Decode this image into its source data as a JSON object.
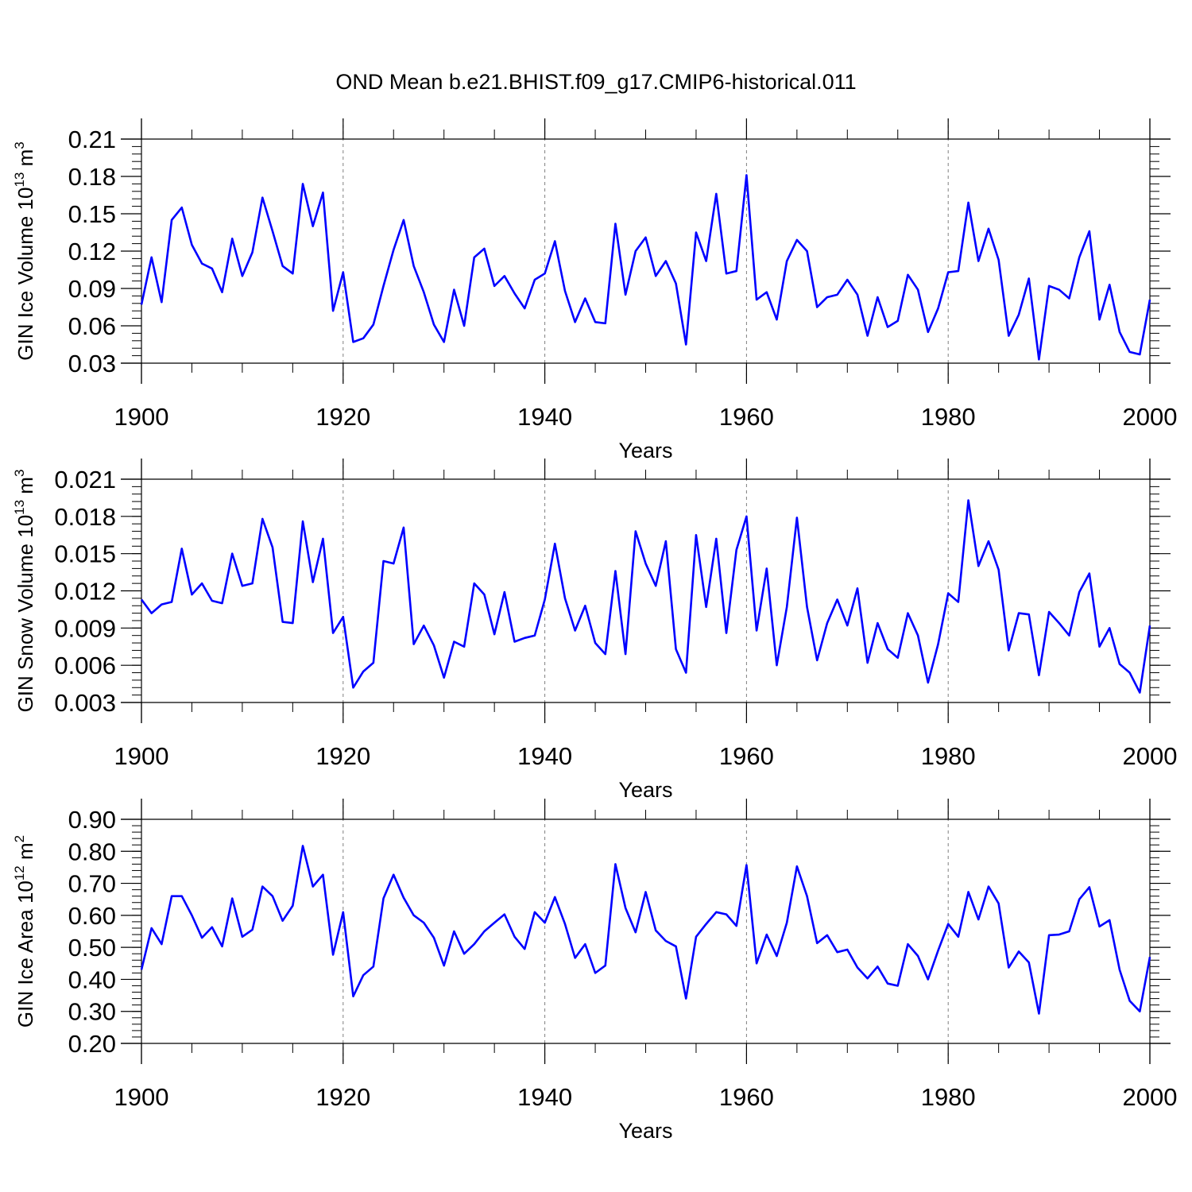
{
  "title": "OND Mean b.e21.BHIST.f09_g17.CMIP6-historical.011",
  "colors": {
    "series": "#0000ff",
    "axis": "#000000",
    "grid": "#808080",
    "background": "#ffffff"
  },
  "chart_data": [
    {
      "type": "line",
      "ylabel_base": "GIN Ice Volume 10",
      "ylabel_exp": "13",
      "ylabel_unit": " m",
      "ylabel_unit_exp": "3",
      "xlabel": "Years",
      "ylim": [
        0.03,
        0.21
      ],
      "xlim": [
        1900,
        2000
      ],
      "yticks": [
        0.03,
        0.06,
        0.09,
        0.12,
        0.15,
        0.18,
        0.21
      ],
      "ytick_labels": [
        "0.03",
        "0.06",
        "0.09",
        "0.12",
        "0.15",
        "0.18",
        "0.21"
      ],
      "xticks": [
        1900,
        1920,
        1940,
        1960,
        1980,
        2000
      ],
      "xtick_labels": [
        "1900",
        "1920",
        "1940",
        "1960",
        "1980",
        "2000"
      ],
      "x_start": 1900,
      "values": [
        0.077,
        0.115,
        0.079,
        0.145,
        0.155,
        0.125,
        0.11,
        0.106,
        0.087,
        0.13,
        0.1,
        0.119,
        0.163,
        0.136,
        0.108,
        0.102,
        0.174,
        0.14,
        0.167,
        0.072,
        0.103,
        0.047,
        0.05,
        0.061,
        0.092,
        0.121,
        0.145,
        0.108,
        0.087,
        0.061,
        0.047,
        0.089,
        0.06,
        0.115,
        0.122,
        0.092,
        0.1,
        0.086,
        0.074,
        0.097,
        0.102,
        0.128,
        0.088,
        0.063,
        0.082,
        0.063,
        0.062,
        0.142,
        0.085,
        0.12,
        0.131,
        0.1,
        0.112,
        0.094,
        0.045,
        0.135,
        0.112,
        0.166,
        0.102,
        0.104,
        0.181,
        0.081,
        0.087,
        0.065,
        0.112,
        0.129,
        0.12,
        0.075,
        0.083,
        0.085,
        0.097,
        0.085,
        0.052,
        0.083,
        0.059,
        0.064,
        0.101,
        0.089,
        0.055,
        0.074,
        0.103,
        0.104,
        0.159,
        0.112,
        0.138,
        0.113,
        0.052,
        0.069,
        0.098,
        0.033,
        0.092,
        0.089,
        0.082,
        0.115,
        0.136,
        0.065,
        0.093,
        0.055,
        0.039,
        0.037,
        0.081
      ]
    },
    {
      "type": "line",
      "ylabel_base": "GIN Snow Volume 10",
      "ylabel_exp": "13",
      "ylabel_unit": " m",
      "ylabel_unit_exp": "3",
      "xlabel": "Years",
      "ylim": [
        0.003,
        0.021
      ],
      "xlim": [
        1900,
        2000
      ],
      "yticks": [
        0.003,
        0.006,
        0.009,
        0.012,
        0.015,
        0.018,
        0.021
      ],
      "ytick_labels": [
        "0.003",
        "0.006",
        "0.009",
        "0.012",
        "0.015",
        "0.018",
        "0.021"
      ],
      "xticks": [
        1900,
        1920,
        1940,
        1960,
        1980,
        2000
      ],
      "xtick_labels": [
        "1900",
        "1920",
        "1940",
        "1960",
        "1980",
        "2000"
      ],
      "x_start": 1900,
      "values": [
        0.0113,
        0.0102,
        0.0109,
        0.0111,
        0.0154,
        0.0117,
        0.0126,
        0.0112,
        0.011,
        0.015,
        0.0124,
        0.0126,
        0.0178,
        0.0155,
        0.0095,
        0.0094,
        0.0176,
        0.0127,
        0.0162,
        0.0086,
        0.0099,
        0.0042,
        0.0055,
        0.0062,
        0.0144,
        0.0142,
        0.0171,
        0.0077,
        0.0092,
        0.0076,
        0.005,
        0.0079,
        0.0075,
        0.0126,
        0.0117,
        0.0085,
        0.0119,
        0.0079,
        0.0082,
        0.0084,
        0.0113,
        0.0158,
        0.0114,
        0.0088,
        0.0108,
        0.0078,
        0.0069,
        0.0136,
        0.0069,
        0.0168,
        0.0142,
        0.0124,
        0.016,
        0.0073,
        0.0054,
        0.0165,
        0.0107,
        0.0162,
        0.0086,
        0.0153,
        0.018,
        0.0088,
        0.0138,
        0.006,
        0.0107,
        0.0179,
        0.0107,
        0.0064,
        0.0094,
        0.0113,
        0.0092,
        0.0122,
        0.0062,
        0.0094,
        0.0073,
        0.0066,
        0.0102,
        0.0084,
        0.0046,
        0.0077,
        0.0118,
        0.0111,
        0.0193,
        0.014,
        0.016,
        0.0137,
        0.0072,
        0.0102,
        0.0101,
        0.0052,
        0.0103,
        0.0094,
        0.0084,
        0.0119,
        0.0134,
        0.0075,
        0.009,
        0.0061,
        0.0054,
        0.0038,
        0.0092
      ]
    },
    {
      "type": "line",
      "ylabel_base": "GIN Ice Area 10",
      "ylabel_exp": "12",
      "ylabel_unit": " m",
      "ylabel_unit_exp": "2",
      "xlabel": "Years",
      "ylim": [
        0.2,
        0.9
      ],
      "xlim": [
        1900,
        2000
      ],
      "yticks": [
        0.2,
        0.3,
        0.4,
        0.5,
        0.6,
        0.7,
        0.8,
        0.9
      ],
      "ytick_labels": [
        "0.20",
        "0.30",
        "0.40",
        "0.50",
        "0.60",
        "0.70",
        "0.80",
        "0.90"
      ],
      "xticks": [
        1900,
        1920,
        1940,
        1960,
        1980,
        2000
      ],
      "xtick_labels": [
        "1900",
        "1920",
        "1940",
        "1960",
        "1980",
        "2000"
      ],
      "x_start": 1900,
      "values": [
        0.43,
        0.56,
        0.51,
        0.66,
        0.66,
        0.6,
        0.53,
        0.563,
        0.503,
        0.653,
        0.533,
        0.555,
        0.69,
        0.66,
        0.583,
        0.63,
        0.817,
        0.69,
        0.727,
        0.477,
        0.61,
        0.347,
        0.413,
        0.44,
        0.653,
        0.727,
        0.655,
        0.6,
        0.577,
        0.53,
        0.443,
        0.55,
        0.48,
        0.51,
        0.55,
        0.577,
        0.603,
        0.533,
        0.495,
        0.61,
        0.577,
        0.657,
        0.573,
        0.467,
        0.51,
        0.42,
        0.443,
        0.76,
        0.623,
        0.547,
        0.673,
        0.553,
        0.52,
        0.503,
        0.34,
        0.533,
        0.573,
        0.61,
        0.603,
        0.567,
        0.757,
        0.45,
        0.54,
        0.473,
        0.577,
        0.753,
        0.66,
        0.513,
        0.538,
        0.485,
        0.493,
        0.437,
        0.403,
        0.44,
        0.387,
        0.38,
        0.51,
        0.473,
        0.4,
        0.49,
        0.573,
        0.533,
        0.673,
        0.587,
        0.69,
        0.637,
        0.437,
        0.487,
        0.453,
        0.293,
        0.538,
        0.54,
        0.55,
        0.65,
        0.688,
        0.565,
        0.585,
        0.43,
        0.333,
        0.3,
        0.47
      ]
    }
  ]
}
